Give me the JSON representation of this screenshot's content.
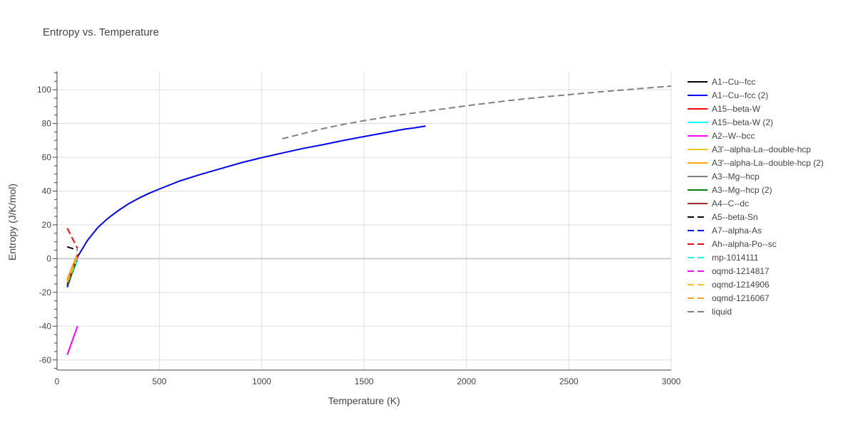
{
  "chart_data": {
    "type": "line",
    "title": "Entropy vs. Temperature",
    "xlabel": "Temperature (K)",
    "ylabel": "Entropy (J/K/mol)",
    "xlim": [
      0,
      3000
    ],
    "ylim": [
      -66,
      111
    ],
    "xticks": [
      0,
      500,
      1000,
      1500,
      2000,
      2500,
      3000
    ],
    "yticks": [
      -60,
      -40,
      -20,
      0,
      20,
      40,
      60,
      80,
      100
    ],
    "grid": true,
    "legend_position": "right",
    "series": [
      {
        "name": "A1--Cu--fcc",
        "color": "#000000",
        "dash": "solid",
        "x": [
          50,
          100
        ],
        "y": [
          -16,
          2
        ]
      },
      {
        "name": "A1--Cu--fcc (2)",
        "color": "#0000ff",
        "dash": "solid",
        "x": [
          50,
          75,
          100,
          150,
          200,
          250,
          300,
          350,
          400,
          450,
          500,
          600,
          700,
          800,
          900,
          1000,
          1100,
          1200,
          1300,
          1400,
          1500,
          1600,
          1700,
          1750,
          1800
        ],
        "y": [
          -17,
          -8,
          1,
          11,
          18.5,
          24,
          28.5,
          32.5,
          35.8,
          38.7,
          41.2,
          46,
          49.8,
          53.3,
          56.8,
          59.8,
          62.5,
          65.2,
          67.5,
          70,
          72.3,
          74.5,
          76.7,
          77.5,
          78.5
        ]
      },
      {
        "name": "A15--beta-W",
        "color": "#ff0000",
        "dash": "solid",
        "x": [
          50,
          100
        ],
        "y": [
          -14,
          0
        ]
      },
      {
        "name": "A15--beta-W (2)",
        "color": "#00ffff",
        "dash": "solid",
        "x": [
          50,
          100
        ],
        "y": [
          -15,
          -1
        ]
      },
      {
        "name": "A2--W--bcc",
        "color": "#ff00ff",
        "dash": "solid",
        "x": [
          50,
          100
        ],
        "y": [
          -57,
          -40
        ]
      },
      {
        "name": "A3'--alpha-La--double-hcp",
        "color": "#f5c518",
        "dash": "solid",
        "x": [
          50,
          100
        ],
        "y": [
          -13,
          3
        ]
      },
      {
        "name": "A3'--alpha-La--double-hcp (2)",
        "color": "#ffa500",
        "dash": "solid",
        "x": [
          50,
          100
        ],
        "y": [
          -12,
          3
        ]
      },
      {
        "name": "A3--Mg--hcp",
        "color": "#808080",
        "dash": "solid",
        "x": [
          50,
          100
        ],
        "y": [
          -15,
          1
        ]
      },
      {
        "name": "A3--Mg--hcp (2)",
        "color": "#008000",
        "dash": "solid",
        "x": [
          50,
          100
        ],
        "y": [
          -16,
          0
        ]
      },
      {
        "name": "A4--C--dc",
        "color": "#a52a2a",
        "dash": "solid",
        "x": [
          50,
          100
        ],
        "y": [
          -15,
          2
        ]
      },
      {
        "name": "A5--beta-Sn",
        "color": "#000000",
        "dash": "dash",
        "x": [
          50,
          100
        ],
        "y": [
          7,
          5
        ]
      },
      {
        "name": "A7--alpha-As",
        "color": "#0000ff",
        "dash": "dash",
        "x": [
          50,
          100
        ],
        "y": [
          -14,
          1
        ]
      },
      {
        "name": "Ah--alpha-Po--sc",
        "color": "#ff0000",
        "dash": "dash",
        "x": [
          50,
          100
        ],
        "y": [
          18,
          6
        ]
      },
      {
        "name": "mp-1014111",
        "color": "#00ffff",
        "dash": "dash",
        "x": [
          50,
          100
        ],
        "y": [
          -14,
          0
        ]
      },
      {
        "name": "oqmd-1214817",
        "color": "#ff00ff",
        "dash": "dash",
        "x": [
          50,
          100
        ],
        "y": [
          -13,
          1
        ]
      },
      {
        "name": "oqmd-1214906",
        "color": "#f5c518",
        "dash": "dash",
        "x": [
          50,
          100
        ],
        "y": [
          -14,
          2
        ]
      },
      {
        "name": "oqmd-1216067",
        "color": "#ffa500",
        "dash": "dash",
        "x": [
          50,
          100
        ],
        "y": [
          -13,
          3
        ]
      },
      {
        "name": "liquid",
        "color": "#808080",
        "dash": "dash",
        "x": [
          1100,
          1200,
          1300,
          1400,
          1500,
          1600,
          1700,
          1800,
          2000,
          2200,
          2400,
          2600,
          2800,
          3000
        ],
        "y": [
          71,
          74,
          77,
          79.5,
          81.7,
          83.7,
          85.5,
          87.2,
          90.5,
          93.5,
          96,
          98.2,
          100.2,
          102.2
        ]
      }
    ]
  }
}
